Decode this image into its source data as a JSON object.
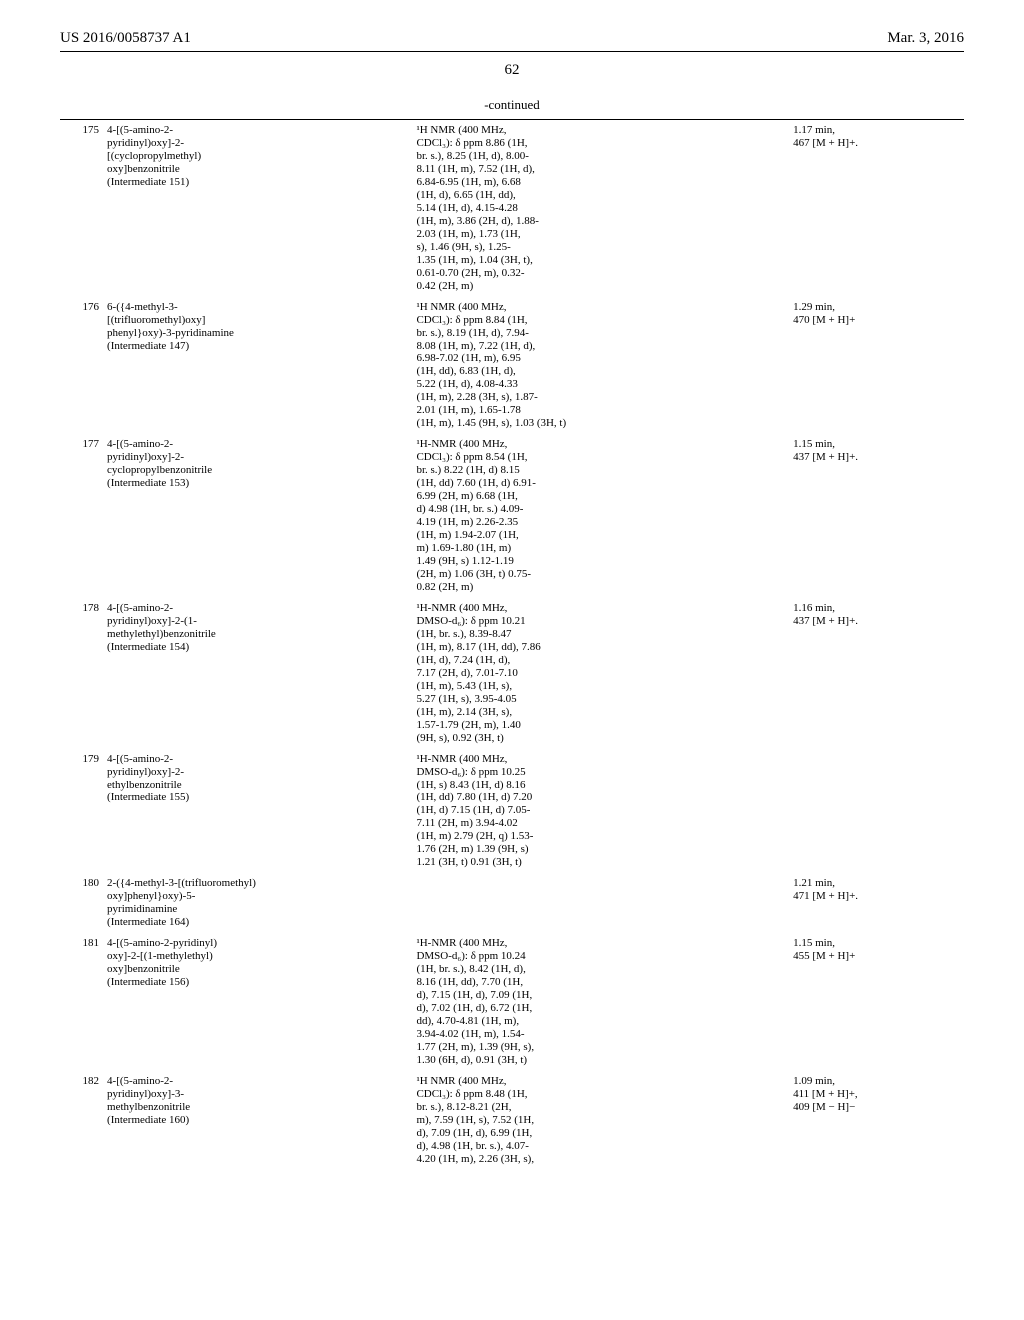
{
  "header": {
    "left": "US 2016/0058737 A1",
    "right": "Mar. 3, 2016"
  },
  "page_num": "62",
  "continued": "-continued",
  "rows": [
    {
      "idx": "175",
      "name": "4-[(5-amino-2-\npyridinyl)oxy]-2-\n[(cyclopropylmethyl)\noxy]benzonitrile\n(Intermediate 151)",
      "nmr": "¹H NMR (400 MHz,\nCDCl₃): δ ppm 8.86 (1H,\nbr. s.), 8.25 (1H, d), 8.00-\n8.11 (1H, m), 7.52 (1H, d),\n6.84-6.95 (1H, m), 6.68\n(1H, d), 6.65 (1H, dd),\n5.14 (1H, d), 4.15-4.28\n(1H, m), 3.86 (2H, d), 1.88-\n2.03 (1H, m), 1.73 (1H,\ns), 1.46 (9H, s), 1.25-\n1.35 (1H, m), 1.04 (3H, t),\n0.61-0.70 (2H, m), 0.32-\n0.42 (2H, m)",
      "time": "1.17 min,\n467 [M + H]+."
    },
    {
      "idx": "176",
      "name": "6-({4-methyl-3-\n[(trifluoromethyl)oxy]\nphenyl}oxy)-3-pyridinamine\n(Intermediate 147)",
      "nmr": "¹H NMR (400 MHz,\nCDCl₃): δ ppm 8.84 (1H,\nbr. s.), 8.19 (1H, d), 7.94-\n8.08 (1H, m), 7.22 (1H, d),\n6.98-7.02 (1H, m), 6.95\n(1H, dd), 6.83 (1H, d),\n5.22 (1H, d), 4.08-4.33\n(1H, m), 2.28 (3H, s), 1.87-\n2.01 (1H, m), 1.65-1.78\n(1H, m), 1.45 (9H, s), 1.03 (3H, t)",
      "time": "1.29 min,\n470 [M + H]+"
    },
    {
      "idx": "177",
      "name": "4-[(5-amino-2-\npyridinyl)oxy]-2-\ncyclopropylbenzonitrile\n(Intermediate 153)",
      "nmr": "¹H-NMR (400 MHz,\nCDCl₃): δ ppm 8.54 (1H,\nbr. s.) 8.22 (1H, d) 8.15\n(1H, dd) 7.60 (1H, d) 6.91-\n6.99 (2H, m) 6.68 (1H,\nd) 4.98 (1H, br. s.) 4.09-\n4.19 (1H, m) 2.26-2.35\n(1H, m) 1.94-2.07 (1H,\nm) 1.69-1.80 (1H, m)\n1.49 (9H, s) 1.12-1.19\n(2H, m) 1.06 (3H, t) 0.75-\n0.82 (2H, m)",
      "time": "1.15 min,\n437 [M + H]+."
    },
    {
      "idx": "178",
      "name": "4-[(5-amino-2-\npyridinyl)oxy]-2-(1-\nmethylethyl)benzonitrile\n(Intermediate 154)",
      "nmr": "¹H-NMR (400 MHz,\nDMSO-d₆): δ ppm 10.21\n(1H, br. s.), 8.39-8.47\n(1H, m), 8.17 (1H, dd), 7.86\n(1H, d), 7.24 (1H, d),\n7.17 (2H, d), 7.01-7.10\n(1H, m), 5.43 (1H, s),\n5.27 (1H, s), 3.95-4.05\n(1H, m), 2.14 (3H, s),\n1.57-1.79 (2H, m), 1.40\n(9H, s), 0.92 (3H, t)",
      "time": "1.16 min,\n437 [M + H]+."
    },
    {
      "idx": "179",
      "name": "4-[(5-amino-2-\npyridinyl)oxy]-2-\nethylbenzonitrile\n(Intermediate 155)",
      "nmr": "¹H-NMR (400 MHz,\nDMSO-d₆): δ ppm 10.25\n(1H, s) 8.43 (1H, d) 8.16\n(1H, dd) 7.80 (1H, d) 7.20\n(1H, d) 7.15 (1H, d) 7.05-\n7.11 (2H, m) 3.94-4.02\n(1H, m) 2.79 (2H, q) 1.53-\n1.76 (2H, m) 1.39 (9H, s)\n1.21 (3H, t) 0.91 (3H, t)",
      "time": ""
    },
    {
      "idx": "180",
      "name": "2-({4-methyl-3-[(trifluoromethyl)\noxy]phenyl}oxy)-5-\npyrimidinamine\n(Intermediate 164)",
      "nmr": "",
      "time": "1.21 min,\n471 [M + H]+."
    },
    {
      "idx": "181",
      "name": "4-[(5-amino-2-pyridinyl)\noxy]-2-[(1-methylethyl)\noxy]benzonitrile\n(Intermediate 156)",
      "nmr": "¹H-NMR (400 MHz,\nDMSO-d₆): δ ppm 10.24\n(1H, br. s.), 8.42 (1H, d),\n8.16 (1H, dd), 7.70 (1H,\nd), 7.15 (1H, d), 7.09 (1H,\nd), 7.02 (1H, d), 6.72 (1H,\ndd), 4.70-4.81 (1H, m),\n3.94-4.02 (1H, m), 1.54-\n1.77 (2H, m), 1.39 (9H, s),\n1.30 (6H, d), 0.91 (3H, t)",
      "time": "1.15 min,\n455 [M + H]+"
    },
    {
      "idx": "182",
      "name": "4-[(5-amino-2-\npyridinyl)oxy]-3-\nmethylbenzonitrile\n(Intermediate 160)",
      "nmr": "¹H NMR (400 MHz,\nCDCl₃): δ ppm 8.48 (1H,\nbr. s.), 8.12-8.21 (2H,\nm), 7.59 (1H, s), 7.52 (1H,\nd), 7.09 (1H, d), 6.99 (1H,\nd), 4.98 (1H, br. s.), 4.07-\n4.20 (1H, m), 2.26 (3H, s),",
      "time": "1.09 min,\n411 [M + H]+,\n409 [M − H]−"
    }
  ]
}
